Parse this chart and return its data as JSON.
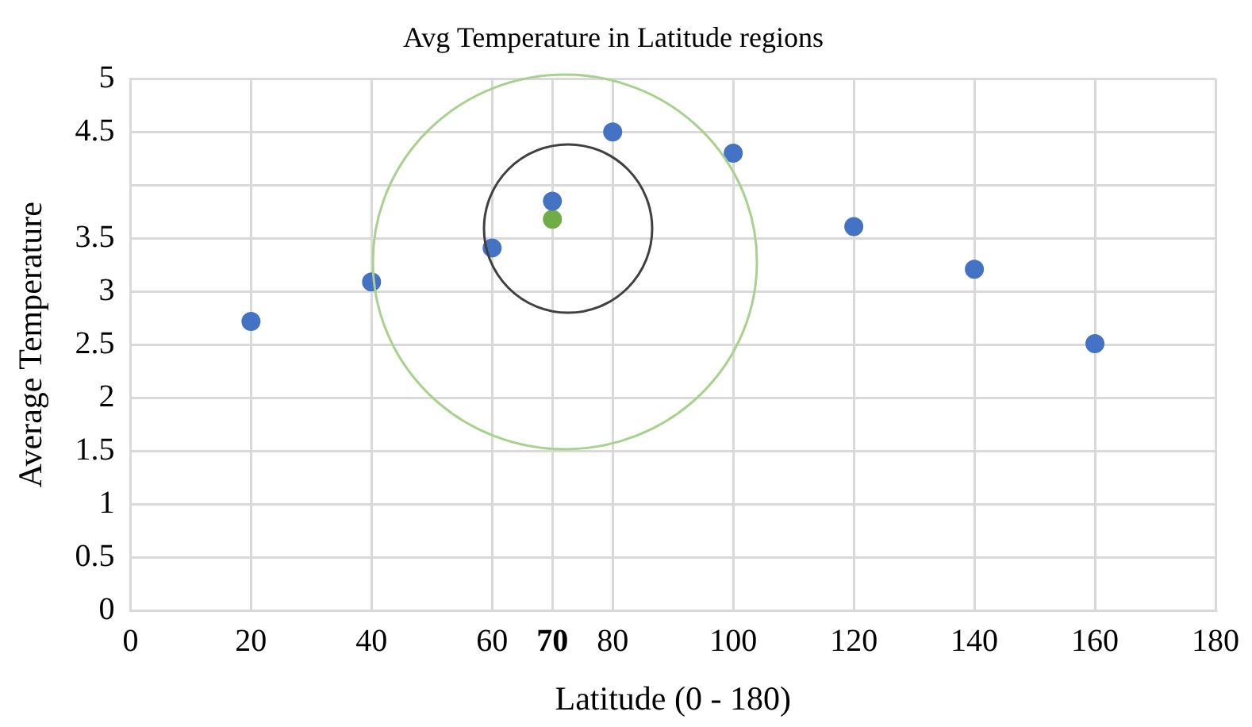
{
  "chart_data": {
    "type": "scatter",
    "title": "Avg Temperature in Latitude regions",
    "xlabel": "Latitude (0 - 180)",
    "ylabel": "Average Temperature",
    "series": [
      {
        "color": "#4472c4",
        "x": [
          20,
          40,
          60,
          70,
          80,
          100,
          120,
          140,
          160
        ],
        "values": [
          2.72,
          3.09,
          3.41,
          3.85,
          4.5,
          4.3,
          3.61,
          3.21,
          2.51
        ]
      },
      {
        "color": "#70ad47",
        "x": [
          70
        ],
        "values": [
          3.68
        ]
      }
    ],
    "xlim": [
      0,
      180
    ],
    "xticks": [
      0,
      20,
      40,
      60,
      {
        "value": 70,
        "label": "70"
      },
      80,
      100,
      120,
      140,
      160,
      180
    ],
    "ylim": [
      0,
      5
    ],
    "yticks": [
      0,
      0.5,
      1,
      1.5,
      2,
      2.5,
      3,
      3.5,
      {
        "value": 4,
        "label": null
      },
      4.5,
      5
    ],
    "grid": true,
    "marker": "circle",
    "legend": false
  }
}
